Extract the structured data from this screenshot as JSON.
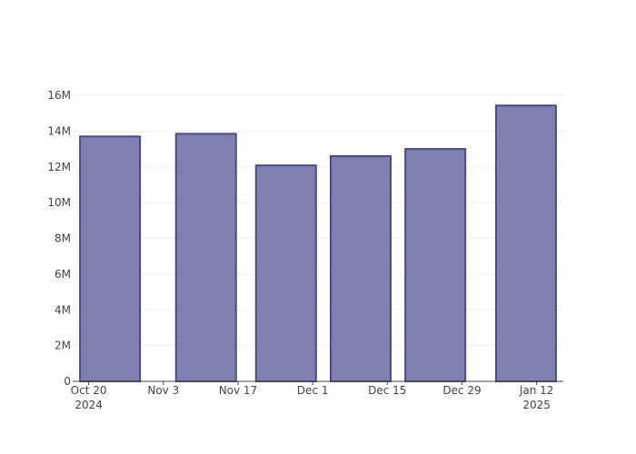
{
  "chart_data": {
    "type": "bar",
    "x": [
      "2024-10-24",
      "2024-11-11",
      "2024-11-26",
      "2024-12-10",
      "2024-12-24",
      "2025-01-10"
    ],
    "values": [
      13700000,
      13850000,
      12080000,
      12600000,
      13000000,
      15430000
    ],
    "color": "#8080b0",
    "edgecolor": "#4a4a8a",
    "xlim": [
      "2024-10-17",
      "2025-01-17"
    ],
    "xticks": [
      {
        "value": "2024-10-20",
        "label": "Oct 20\n2024"
      },
      {
        "value": "2024-11-03",
        "label": "Nov 3"
      },
      {
        "value": "2024-11-17",
        "label": "Nov 17"
      },
      {
        "value": "2024-12-01",
        "label": "Dec 1"
      },
      {
        "value": "2024-12-15",
        "label": "Dec 15"
      },
      {
        "value": "2024-12-29",
        "label": "Dec 29"
      },
      {
        "value": "2025-01-12",
        "label": "Jan 12\n2025"
      }
    ],
    "ylim": [
      0,
      16000000
    ],
    "yticks": [
      0,
      {
        "value": 2000000,
        "label": "2M"
      },
      {
        "value": 4000000,
        "label": "4M"
      },
      {
        "value": 6000000,
        "label": "6M"
      },
      {
        "value": 8000000,
        "label": "8M"
      },
      {
        "value": 10000000,
        "label": "10M"
      },
      {
        "value": 12000000,
        "label": "12M"
      },
      {
        "value": 14000000,
        "label": "14M"
      },
      {
        "value": 16000000,
        "label": "16M"
      }
    ],
    "grid": true
  }
}
